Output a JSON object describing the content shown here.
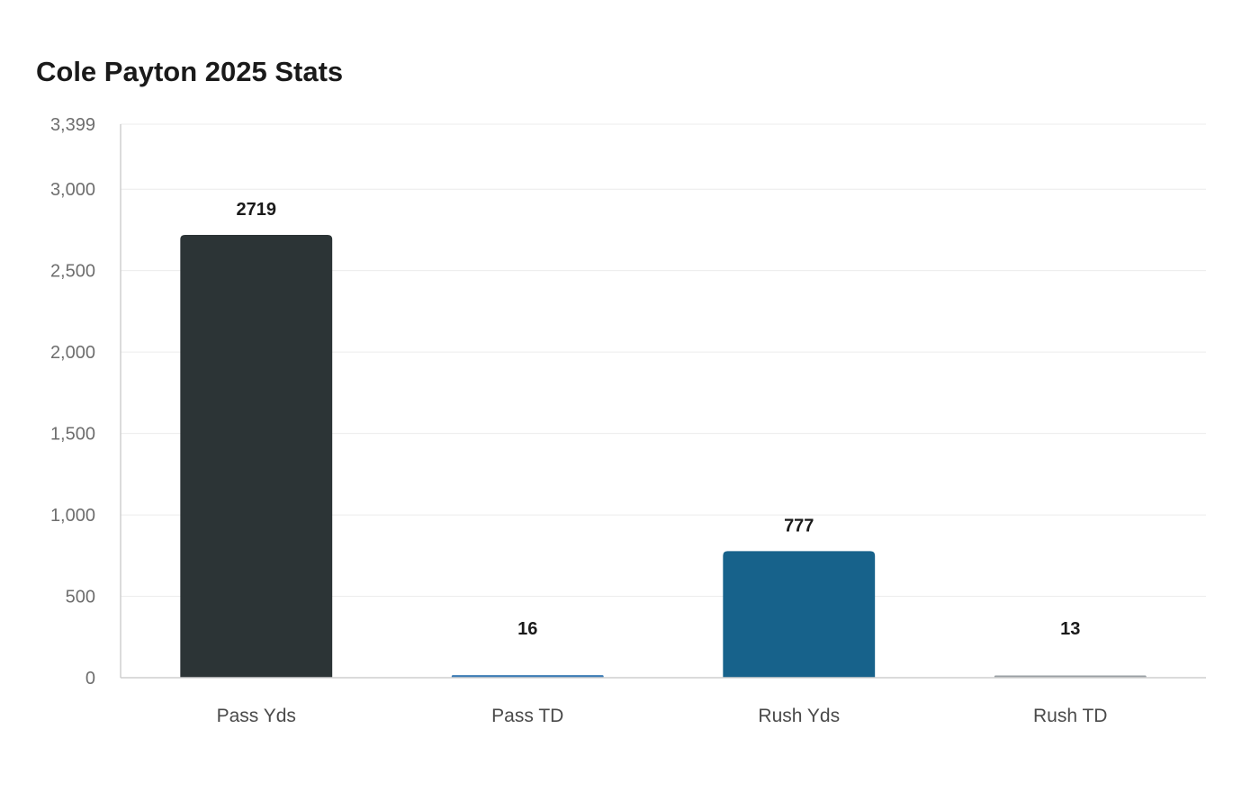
{
  "chart_data": {
    "type": "bar",
    "title": "Cole Payton 2025 Stats",
    "xlabel": "",
    "ylabel": "",
    "categories": [
      "Pass Yds",
      "Pass TD",
      "Rush Yds",
      "Rush TD"
    ],
    "values": [
      2719,
      16,
      777,
      13
    ],
    "colors": [
      "#2c3436",
      "#3b7bb5",
      "#17628b",
      "#9aa0a4"
    ],
    "ylim": [
      0,
      3399
    ],
    "yticks": [
      0,
      500,
      1000,
      1500,
      2000,
      2500,
      3000,
      3399
    ],
    "ytick_labels": [
      "0",
      "500",
      "1,000",
      "1,500",
      "2,000",
      "2,500",
      "3,000",
      "3,399"
    ],
    "grid": true,
    "legend": "none"
  }
}
